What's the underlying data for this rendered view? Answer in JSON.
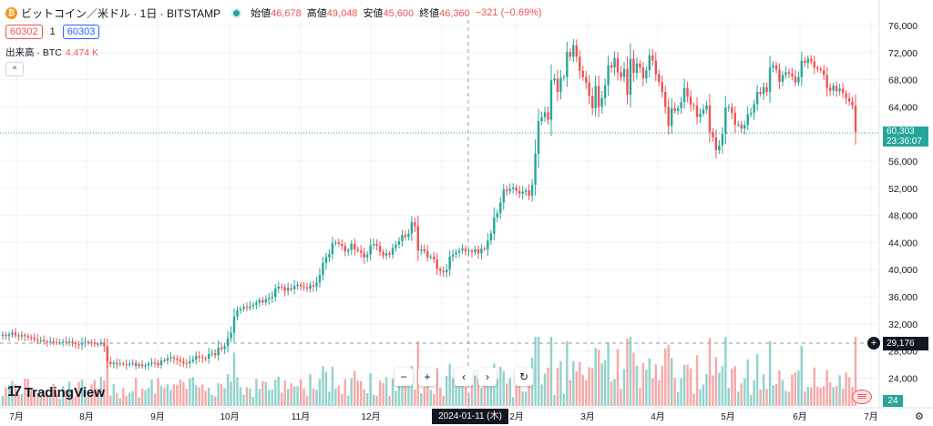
{
  "header": {
    "coin_glyph": "₿",
    "symbol": "ビットコイン／米ドル · 1日 · BITSTAMP",
    "open_label": "始値",
    "open": "46,678",
    "high_label": "高値",
    "high": "49,048",
    "low_label": "安値",
    "low": "45,600",
    "close_label": "終値",
    "close": "46,360",
    "change": "−321 (−0.69%)"
  },
  "quote": {
    "bid": "60302",
    "spread": "1",
    "ask": "60303"
  },
  "volume_legend": {
    "label": "出来高 · BTC",
    "value": "4.474 K"
  },
  "collapse_icon": "^",
  "nav": {
    "zoom_out": "−",
    "zoom_in": "+",
    "scroll_left": "‹",
    "scroll_right": "›",
    "reset": "↻"
  },
  "logo": {
    "mark": "17",
    "text": "TradingView"
  },
  "price_tag": {
    "price": "60,303",
    "countdown": "23:36:07"
  },
  "crosshair": {
    "price": "29,176",
    "date": "2024-01-11 (木)",
    "plus": "+"
  },
  "volume_tag": "24",
  "settings_icon": "⚙",
  "colors": {
    "up": "#26a69a",
    "down": "#ef5350",
    "text": "#131722",
    "grid": "#f0f3fa"
  },
  "chart_data": {
    "type": "candlestick",
    "y_axis": {
      "ticks": [
        "76,000",
        "72,000",
        "68,000",
        "64,000",
        "60,000",
        "56,000",
        "52,000",
        "48,000",
        "44,000",
        "40,000",
        "36,000",
        "32,000",
        "28,000",
        "24,000"
      ],
      "range": [
        22000,
        77500
      ]
    },
    "x_axis": {
      "ticks": [
        "7月",
        "8月",
        "9月",
        "10月",
        "11月",
        "12月",
        "2024",
        "2月",
        "3月",
        "4月",
        "5月",
        "6月",
        "7月"
      ]
    },
    "series": [
      {
        "name": "BTC/USD",
        "close": [
          30400,
          30200,
          30450,
          30700,
          30300,
          30150,
          30350,
          30200,
          30050,
          29950,
          29700,
          29500,
          29600,
          29400,
          29350,
          29400,
          29300,
          29200,
          29250,
          29350,
          29250,
          29400,
          29150,
          29050,
          28950,
          29200,
          29350,
          29300,
          29150,
          29050,
          29000,
          29250,
          28700,
          26400,
          26100,
          26250,
          26050,
          26150,
          26050,
          25950,
          26100,
          26250,
          25800,
          26000,
          25750,
          25900,
          26150,
          26300,
          26200,
          25900,
          26600,
          26550,
          26900,
          27050,
          26850,
          26700,
          26500,
          26200,
          26150,
          26500,
          26750,
          27250,
          27050,
          26950,
          26900,
          27550,
          27650,
          27400,
          28500,
          28300,
          28700,
          29900,
          30700,
          33100,
          34000,
          34200,
          34500,
          34350,
          34600,
          34800,
          35100,
          35500,
          35200,
          35600,
          35800,
          36000,
          37200,
          37500,
          37400,
          36900,
          37300,
          37100,
          37600,
          37800,
          37500,
          37400,
          37200,
          37700,
          37500,
          38100,
          39200,
          41000,
          41800,
          42300,
          43900,
          44000,
          43800,
          43500,
          42700,
          42900,
          43800,
          43000,
          42800,
          42500,
          41800,
          42200,
          43600,
          43800,
          43500,
          42600,
          42100,
          42400,
          42200,
          43200,
          43700,
          44200,
          45100,
          44800,
          45300,
          47000,
          46400,
          42800,
          43000,
          42700,
          41800,
          41900,
          41500,
          40100,
          39800,
          39600,
          40000,
          41900,
          42200,
          42500,
          42800,
          43100,
          42700,
          42800,
          42600,
          43000,
          42400,
          43100,
          43000,
          44300,
          45300,
          47700,
          48300,
          49900,
          51800,
          51600,
          51900,
          52100,
          51600,
          51200,
          51500,
          51700,
          50900,
          52500,
          57100,
          61900,
          62500,
          63200,
          62100,
          67900,
          68200,
          66200,
          68300,
          68400,
          72100,
          71400,
          73100,
          71400,
          69300,
          68400,
          67600,
          65600,
          63800,
          67100,
          64000,
          65300,
          67200,
          70100,
          69800,
          71200,
          69100,
          68400,
          69600,
          65800,
          71100,
          69000,
          70400,
          69800,
          68200,
          69400,
          71600,
          70800,
          68800,
          67700,
          66200,
          64000,
          61200,
          63800,
          63400,
          63800,
          64700,
          66800,
          65500,
          64300,
          64200,
          62500,
          63000,
          63600,
          64200,
          60300,
          59500,
          57600,
          58300,
          60000,
          63900,
          64000,
          63100,
          61400,
          61400,
          60800,
          61300,
          62900,
          63100,
          64400,
          66200,
          65900,
          66900,
          66200,
          69800,
          70100,
          69500,
          67700,
          68700,
          69100,
          68900,
          68500,
          67600,
          68400,
          70800,
          70500,
          71100,
          70700,
          69800,
          69600,
          69400,
          68700,
          66800,
          66400,
          67100,
          66300,
          66700,
          66000,
          65300,
          64800,
          64200,
          60300
        ]
      }
    ],
    "volume": {
      "last": "24"
    }
  }
}
